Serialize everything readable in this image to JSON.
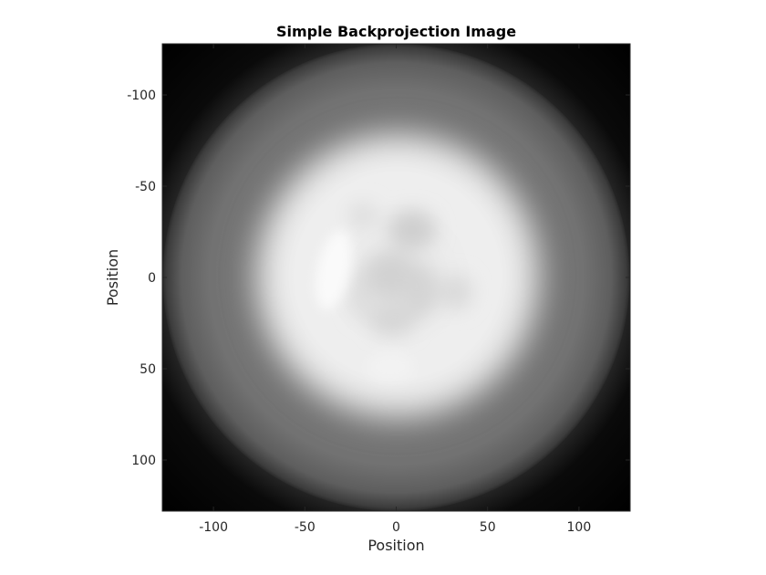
{
  "chart_data": {
    "type": "heatmap",
    "title": "Simple Backprojection Image",
    "xlabel": "Position",
    "ylabel": "Position",
    "xlim": [
      -128,
      128
    ],
    "ylim": [
      -128,
      128
    ],
    "y_direction": "reverse",
    "x_ticks": [
      -100,
      -50,
      0,
      50,
      100
    ],
    "y_ticks": [
      -100,
      -50,
      0,
      50,
      100
    ],
    "colormap": "gray",
    "grid": false,
    "colors": {
      "axis": "#262626",
      "background": "#000000"
    }
  }
}
